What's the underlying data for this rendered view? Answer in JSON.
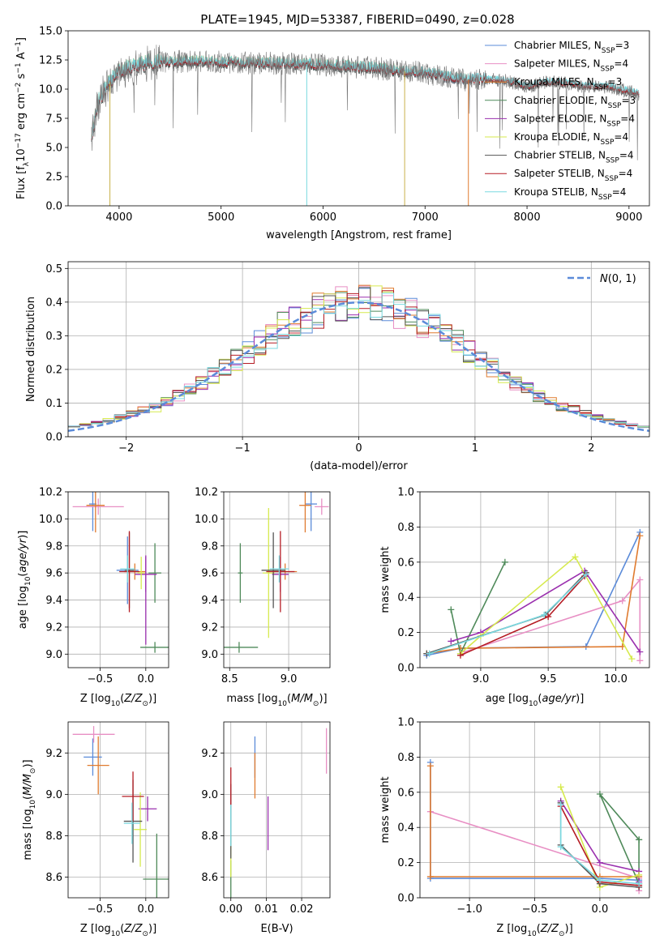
{
  "title": "PLATE=1945, MJD=53387, FIBERID=0490, z=0.028",
  "models": [
    {
      "name": "Chabrier MILES, N$_{SSP}$=3",
      "label": "Chabrier MILES, N",
      "sub": "SSP",
      "eq": "=3",
      "color": "#5b8bd9"
    },
    {
      "name": "Salpeter MILES, N$_{SSP}$=4",
      "label": "Salpeter MILES, N",
      "sub": "SSP",
      "eq": "=4",
      "color": "#e88fc4"
    },
    {
      "name": "Kroupa MILES, N$_{SSP}$=3",
      "label": "Kroupa MILES, N",
      "sub": "SSP",
      "eq": "=3",
      "color": "#e07b2f"
    },
    {
      "name": "Chabrier ELODIE, N$_{SSP}$=3",
      "label": "Chabrier ELODIE, N",
      "sub": "SSP",
      "eq": "=3",
      "color": "#4f8a5a"
    },
    {
      "name": "Salpeter ELODIE, N$_{SSP}$=4",
      "label": "Salpeter ELODIE, N",
      "sub": "SSP",
      "eq": "=4",
      "color": "#9a2fae"
    },
    {
      "name": "Kroupa ELODIE, N$_{SSP}$=4",
      "label": "Kroupa ELODIE, N",
      "sub": "SSP",
      "eq": "=4",
      "color": "#d6ea4e"
    },
    {
      "name": "Chabrier STELIB, N$_{SSP}$=4",
      "label": "Chabrier STELIB, N",
      "sub": "SSP",
      "eq": "=4",
      "color": "#555555"
    },
    {
      "name": "Salpeter STELIB, N$_{SSP}$=4",
      "label": "Salpeter STELIB, N",
      "sub": "SSP",
      "eq": "=4",
      "color": "#b51c24"
    },
    {
      "name": "Kroupa STELIB, N$_{SSP}$=4",
      "label": "Kroupa STELIB, N",
      "sub": "SSP",
      "eq": "=4",
      "color": "#7ad9e0"
    }
  ],
  "chart_data": [
    {
      "id": "spectrum",
      "type": "line",
      "title": "PLATE=1945, MJD=53387, FIBERID=0490, z=0.028",
      "xlabel": "wavelength [Angstrom, rest frame]",
      "ylabel": "Flux [f$_\\lambda$10$^{-17}$ erg cm$^{-2}$ s$^{-1}$ A$^{-1}$]",
      "xlim": [
        3500,
        9200
      ],
      "ylim": [
        0,
        15
      ],
      "xticks": [
        4000,
        5000,
        6000,
        7000,
        8000,
        9000
      ],
      "yticks": [
        0.0,
        2.5,
        5.0,
        7.5,
        10.0,
        12.5,
        15.0
      ],
      "data_continuum": {
        "x": [
          3730,
          3800,
          3900,
          4000,
          4100,
          4200,
          4300,
          4400,
          4500,
          4700,
          5000,
          5500,
          6000,
          6500,
          7000,
          7200,
          7400,
          7600,
          7800,
          8000,
          8200,
          8400,
          8600,
          8800,
          9000,
          9100
        ],
        "y": [
          6.0,
          9.0,
          10.5,
          11.5,
          11.8,
          12.0,
          12.3,
          12.4,
          12.3,
          12.4,
          12.3,
          12.2,
          12.1,
          11.8,
          11.4,
          11.1,
          10.8,
          10.9,
          10.7,
          10.2,
          10.6,
          10.5,
          10.2,
          10.2,
          9.8,
          9.6
        ]
      },
      "model_end_wavelength": {
        "MILES": 7430,
        "ELODIE": 6800,
        "STELIB": 9100
      },
      "dropouts": [
        {
          "x": 3910,
          "series": "ELODIE"
        },
        {
          "x": 5840,
          "series": "STELIB"
        },
        {
          "x": 6800,
          "series": "ELODIE"
        },
        {
          "x": 7425,
          "series": "MILES"
        }
      ]
    },
    {
      "id": "residuals",
      "type": "histogram",
      "xlabel": "(data-model)/error",
      "ylabel": "Normed distribution",
      "xlim": [
        -2.5,
        2.5
      ],
      "ylim": [
        0,
        0.52
      ],
      "xticks": [
        -2,
        -1,
        0,
        1,
        2
      ],
      "yticks": [
        0.0,
        0.1,
        0.2,
        0.3,
        0.4,
        0.5
      ],
      "bin_width": 0.1,
      "reference": {
        "name": "$\\mathcal{N}(0,1)$",
        "label": "N(0, 1)",
        "color": "#5b8bd9"
      }
    },
    {
      "id": "age_vs_Z",
      "type": "scatter",
      "xlabel": "Z [log$_{10}$(Z/Z$_\\odot$)]",
      "ylabel": "age  [log$_{10}$(age/yr)]",
      "xlim": [
        -0.85,
        0.25
      ],
      "ylim": [
        8.9,
        10.2
      ],
      "xticks": [
        -0.5,
        0.0
      ],
      "yticks": [
        9.0,
        9.2,
        9.4,
        9.6,
        9.8,
        10.0,
        10.2
      ],
      "points": [
        {
          "model": 0,
          "x": -0.58,
          "y": 10.11,
          "xerr": 0.04,
          "yerr": 0.2
        },
        {
          "model": 0,
          "x": -0.2,
          "y": 9.62,
          "xerr": 0.12,
          "yerr": 0.25
        },
        {
          "model": 1,
          "x": -0.52,
          "y": 10.09,
          "xerr": 0.28,
          "yerr": 0.06
        },
        {
          "model": 2,
          "x": -0.55,
          "y": 10.1,
          "xerr": 0.1,
          "yerr": 0.2
        },
        {
          "model": 2,
          "x": -0.12,
          "y": 9.61,
          "xerr": 0.12,
          "yerr": 0.06
        },
        {
          "model": 3,
          "x": 0.1,
          "y": 9.05,
          "xerr": 0.16,
          "yerr": 0.04
        },
        {
          "model": 3,
          "x": 0.1,
          "y": 9.6,
          "xerr": 0.07,
          "yerr": 0.22
        },
        {
          "model": 4,
          "x": 0.0,
          "y": 9.59,
          "xerr": 0.12,
          "yerr": 0.13
        },
        {
          "model": 4,
          "x": 0.0,
          "y": 9.4,
          "xerr": 0.0,
          "yerr": 0.33
        },
        {
          "model": 5,
          "x": -0.05,
          "y": 9.6,
          "xerr": 0.04,
          "yerr": 0.12
        },
        {
          "model": 6,
          "x": -0.18,
          "y": 9.62,
          "xerr": 0.05,
          "yerr": 0.28
        },
        {
          "model": 7,
          "x": -0.18,
          "y": 9.61,
          "xerr": 0.11,
          "yerr": 0.3
        },
        {
          "model": 8,
          "x": -0.2,
          "y": 9.63,
          "xerr": 0.08,
          "yerr": 0.1
        }
      ]
    },
    {
      "id": "age_vs_mass",
      "type": "scatter",
      "xlabel": "mass [log$_{10}$(M/M$_\\odot$)]",
      "ylabel": "",
      "xlim": [
        8.45,
        9.35
      ],
      "ylim": [
        8.9,
        10.2
      ],
      "xticks": [
        8.5,
        9.0
      ],
      "yticks": [
        9.0,
        9.2,
        9.4,
        9.6,
        9.8,
        10.0,
        10.2
      ],
      "points": [
        {
          "model": 0,
          "x": 9.19,
          "y": 10.11,
          "xerr": 0.05,
          "yerr": 0.2
        },
        {
          "model": 1,
          "x": 9.28,
          "y": 10.09,
          "xerr": 0.06,
          "yerr": 0.06
        },
        {
          "model": 2,
          "x": 9.14,
          "y": 10.1,
          "xerr": 0.05,
          "yerr": 0.2
        },
        {
          "model": 2,
          "x": 8.97,
          "y": 9.61,
          "xerr": 0.1,
          "yerr": 0.06
        },
        {
          "model": 3,
          "x": 8.58,
          "y": 9.05,
          "xerr": 0.16,
          "yerr": 0.04
        },
        {
          "model": 3,
          "x": 8.59,
          "y": 9.6,
          "xerr": 0.02,
          "yerr": 0.22
        },
        {
          "model": 4,
          "x": 8.93,
          "y": 9.59,
          "xerr": 0.07,
          "yerr": 0.13
        },
        {
          "model": 5,
          "x": 8.83,
          "y": 9.6,
          "xerr": 0.05,
          "yerr": 0.48
        },
        {
          "model": 6,
          "x": 8.87,
          "y": 9.62,
          "xerr": 0.1,
          "yerr": 0.28
        },
        {
          "model": 7,
          "x": 8.93,
          "y": 9.61,
          "xerr": 0.12,
          "yerr": 0.3
        },
        {
          "model": 8,
          "x": 8.92,
          "y": 9.63,
          "xerr": 0.08,
          "yerr": 0.1
        }
      ]
    },
    {
      "id": "weight_vs_age",
      "type": "line",
      "xlabel": "age  [log$_{10}$(age/yr)]",
      "ylabel": "mass weight",
      "xlim": [
        8.55,
        10.25
      ],
      "ylim": [
        0,
        1
      ],
      "xticks": [
        9.0,
        9.5,
        10.0
      ],
      "yticks": [
        0.0,
        0.2,
        0.4,
        0.6,
        0.8,
        1.0
      ],
      "series": [
        {
          "model": 0,
          "x": [
            8.6,
            8.85,
            9.78,
            10.18
          ],
          "y": [
            0.07,
            0.11,
            0.12,
            0.77
          ]
        },
        {
          "model": 1,
          "x": [
            8.88,
            10.05,
            10.18,
            10.18
          ],
          "y": [
            0.09,
            0.38,
            0.5,
            0.04
          ]
        },
        {
          "model": 2,
          "x": [
            8.6,
            8.85,
            10.05,
            10.18
          ],
          "y": [
            0.08,
            0.11,
            0.12,
            0.75
          ]
        },
        {
          "model": 3,
          "x": [
            8.78,
            8.85,
            9.18
          ],
          "y": [
            0.33,
            0.08,
            0.6
          ]
        },
        {
          "model": 4,
          "x": [
            8.78,
            9.0,
            9.77,
            10.18
          ],
          "y": [
            0.15,
            0.2,
            0.55,
            0.09
          ]
        },
        {
          "model": 5,
          "x": [
            8.85,
            9.0,
            9.7,
            10.12
          ],
          "y": [
            0.08,
            0.18,
            0.63,
            0.05
          ]
        },
        {
          "model": 6,
          "x": [
            8.6,
            9.48,
            9.78
          ],
          "y": [
            0.08,
            0.3,
            0.54
          ]
        },
        {
          "model": 7,
          "x": [
            8.85,
            9.5,
            9.77
          ],
          "y": [
            0.07,
            0.29,
            0.52
          ]
        },
        {
          "model": 8,
          "x": [
            8.62,
            9.47,
            9.78
          ],
          "y": [
            0.08,
            0.3,
            0.53
          ]
        }
      ]
    },
    {
      "id": "mass_vs_Z",
      "type": "scatter",
      "xlabel": "Z [log$_{10}$(Z/Z$_\\odot$)]",
      "ylabel": "mass [log$_{10}$(M/M$_\\odot$)]",
      "xlim": [
        -0.85,
        0.25
      ],
      "ylim": [
        8.5,
        9.35
      ],
      "xticks": [
        -0.5,
        0.0
      ],
      "yticks": [
        8.6,
        8.8,
        9.0,
        9.2
      ],
      "points": [
        {
          "model": 0,
          "x": -0.58,
          "y": 9.18,
          "xerr": 0.1,
          "yerr": 0.09
        },
        {
          "model": 1,
          "x": -0.57,
          "y": 9.29,
          "xerr": 0.23,
          "yerr": 0.04
        },
        {
          "model": 2,
          "x": -0.52,
          "y": 9.14,
          "xerr": 0.12,
          "yerr": 0.14
        },
        {
          "model": 3,
          "x": 0.12,
          "y": 8.59,
          "xerr": 0.15,
          "yerr": 0.22
        },
        {
          "model": 4,
          "x": 0.02,
          "y": 8.93,
          "xerr": 0.1,
          "yerr": 0.06
        },
        {
          "model": 5,
          "x": -0.06,
          "y": 8.83,
          "xerr": 0.07,
          "yerr": 0.18
        },
        {
          "model": 6,
          "x": -0.14,
          "y": 8.87,
          "xerr": 0.1,
          "yerr": 0.2
        },
        {
          "model": 7,
          "x": -0.14,
          "y": 8.99,
          "xerr": 0.12,
          "yerr": 0.12
        },
        {
          "model": 8,
          "x": -0.15,
          "y": 8.86,
          "xerr": 0.09,
          "yerr": 0.1
        }
      ]
    },
    {
      "id": "mass_vs_ebv",
      "type": "scatter",
      "xlabel": "E(B-V)",
      "ylabel": "",
      "xlim": [
        -0.002,
        0.028
      ],
      "ylim": [
        8.5,
        9.35
      ],
      "xticks": [
        0.0,
        0.01,
        0.02
      ],
      "yticks": [
        8.6,
        8.8,
        9.0,
        9.2
      ],
      "points": [
        {
          "model": 0,
          "x": 0.0068,
          "y": 9.18,
          "yerr": 0.1
        },
        {
          "model": 1,
          "x": 0.027,
          "y": 9.21,
          "yerr": 0.11
        },
        {
          "model": 2,
          "x": 0.0068,
          "y": 9.09,
          "yerr": 0.11
        },
        {
          "model": 3,
          "x": 0.0,
          "y": 8.59,
          "yerr": 0.09
        },
        {
          "model": 4,
          "x": 0.0105,
          "y": 8.86,
          "yerr": 0.13
        },
        {
          "model": 5,
          "x": 0.0,
          "y": 8.7,
          "yerr": 0.1
        },
        {
          "model": 6,
          "x": 0.0,
          "y": 8.87,
          "yerr": 0.18
        },
        {
          "model": 7,
          "x": 0.0,
          "y": 9.04,
          "yerr": 0.09
        },
        {
          "model": 8,
          "x": 0.0,
          "y": 8.85,
          "yerr": 0.1
        }
      ]
    },
    {
      "id": "weight_vs_Z",
      "type": "line",
      "xlabel": "Z [log$_{10}$(Z/Z$_\\odot$)]",
      "ylabel": "mass weight",
      "xlim": [
        -1.38,
        0.38
      ],
      "ylim": [
        0,
        1
      ],
      "xticks": [
        -1.0,
        -0.5,
        0.0
      ],
      "yticks": [
        0.0,
        0.2,
        0.4,
        0.6,
        0.8,
        1.0
      ],
      "series": [
        {
          "model": 0,
          "x": [
            -1.3,
            -1.3,
            0.0,
            0.3
          ],
          "y": [
            0.77,
            0.11,
            0.11,
            0.1
          ]
        },
        {
          "model": 1,
          "x": [
            -1.3,
            0.3,
            0.3
          ],
          "y": [
            0.49,
            0.11,
            0.04
          ]
        },
        {
          "model": 2,
          "x": [
            -1.3,
            -1.3,
            0.0,
            0.3
          ],
          "y": [
            0.75,
            0.12,
            0.12,
            0.12
          ]
        },
        {
          "model": 3,
          "x": [
            0.3,
            0.3,
            0.0,
            0.3
          ],
          "y": [
            0.33,
            0.08,
            0.59,
            0.33
          ]
        },
        {
          "model": 4,
          "x": [
            -0.3,
            0.0,
            0.3,
            0.3
          ],
          "y": [
            0.55,
            0.2,
            0.15,
            0.09
          ]
        },
        {
          "model": 5,
          "x": [
            -0.3,
            0.0,
            0.3
          ],
          "y": [
            0.63,
            0.06,
            0.13
          ]
        },
        {
          "model": 6,
          "x": [
            -0.3,
            -0.3,
            0.0,
            0.3
          ],
          "y": [
            0.54,
            0.3,
            0.08,
            0.06
          ]
        },
        {
          "model": 7,
          "x": [
            -0.3,
            0.0,
            0.3
          ],
          "y": [
            0.52,
            0.09,
            0.07
          ]
        },
        {
          "model": 8,
          "x": [
            -0.3,
            -0.3,
            0.0,
            0.3
          ],
          "y": [
            0.53,
            0.29,
            0.1,
            0.08
          ]
        }
      ]
    }
  ]
}
